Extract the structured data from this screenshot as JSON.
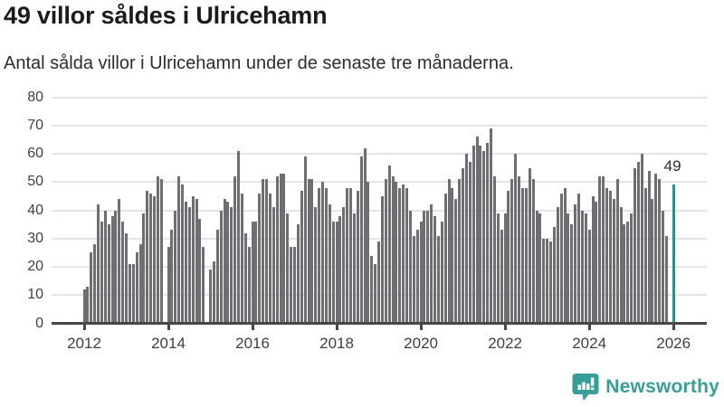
{
  "header": {
    "title": "49 villor såldes i Ulricehamn",
    "subtitle": "Antal sålda villor i Ulricehamn under de senaste tre månaderna."
  },
  "chart_data": {
    "type": "bar",
    "title": "49 villor såldes i Ulricehamn",
    "subtitle": "Antal sålda villor i Ulricehamn under de senaste tre månaderna.",
    "x_start": "2012-01",
    "x_unit": "month",
    "values": [
      12,
      13,
      25,
      28,
      42,
      36,
      40,
      35,
      38,
      40,
      44,
      36,
      32,
      21,
      21,
      25,
      28,
      39,
      47,
      46,
      45,
      52,
      51,
      null,
      27,
      33,
      40,
      52,
      49,
      43,
      41,
      45,
      44,
      37,
      27,
      null,
      19,
      22,
      33,
      40,
      44,
      43,
      41,
      52,
      61,
      46,
      32,
      27,
      36,
      36,
      46,
      51,
      51,
      46,
      41,
      52,
      53,
      53,
      39,
      27,
      27,
      35,
      47,
      59,
      51,
      51,
      41,
      48,
      50,
      48,
      42,
      36,
      36,
      38,
      41,
      48,
      48,
      39,
      47,
      59,
      62,
      50,
      24,
      21,
      29,
      45,
      51,
      56,
      52,
      50,
      48,
      49,
      48,
      40,
      31,
      33,
      36,
      40,
      40,
      42,
      38,
      31,
      36,
      46,
      51,
      48,
      44,
      51,
      55,
      60,
      57,
      63,
      66,
      63,
      61,
      64,
      69,
      52,
      39,
      33,
      39,
      47,
      51,
      60,
      52,
      48,
      48,
      55,
      51,
      40,
      39,
      30,
      30,
      29,
      34,
      41,
      46,
      48,
      39,
      35,
      42,
      46,
      40,
      39,
      33,
      45,
      43,
      52,
      52,
      48,
      47,
      44,
      51,
      41,
      35,
      36,
      39,
      55,
      57,
      60,
      48,
      54,
      44,
      53,
      51,
      40,
      31,
      null,
      49
    ],
    "highlight": {
      "index": 168,
      "value": 49,
      "label": "49",
      "color": "#00a39a"
    },
    "bar_color": "#6e6e73",
    "y_ticks": [
      0,
      10,
      20,
      30,
      40,
      50,
      60,
      70,
      80
    ],
    "ylim": [
      0,
      80
    ],
    "x_tick_labels": [
      "2012",
      "2014",
      "2016",
      "2018",
      "2020",
      "2022",
      "2024",
      "2026"
    ],
    "x_tick_every_slots": 24,
    "grid": true,
    "legend": "none",
    "grid_color": "#e4e4e4",
    "axis_color": "#474747"
  },
  "footer": {
    "brand": "Newsworthy",
    "brand_color": "#389e98"
  }
}
